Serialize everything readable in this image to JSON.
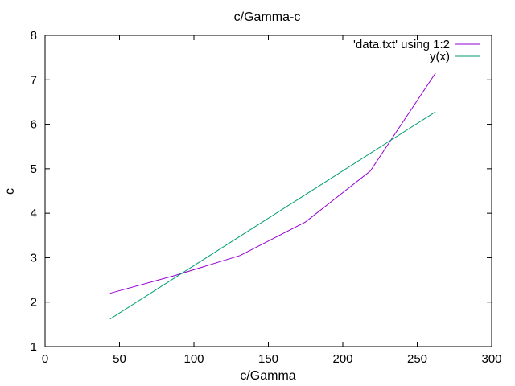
{
  "chart_data": {
    "type": "line",
    "title": "c/Gamma-c",
    "xlabel": "c/Gamma",
    "ylabel": "c",
    "xlim": [
      0,
      300
    ],
    "ylim": [
      1,
      8
    ],
    "xticks": [
      0,
      50,
      100,
      150,
      200,
      250,
      300
    ],
    "yticks": [
      1,
      2,
      3,
      4,
      5,
      6,
      7,
      8
    ],
    "grid": false,
    "legend_position": "top-right",
    "series": [
      {
        "name": "'data.txt' using 1:2",
        "color": "#9400d3",
        "x": [
          43.7,
          87.4,
          131.1,
          174.8,
          218.5,
          262.2
        ],
        "y": [
          2.2,
          2.6,
          3.05,
          3.8,
          4.95,
          7.15
        ]
      },
      {
        "name": "y(x)",
        "color": "#009e73",
        "x": [
          43.7,
          262.2
        ],
        "y": [
          1.62,
          6.28
        ]
      }
    ]
  }
}
